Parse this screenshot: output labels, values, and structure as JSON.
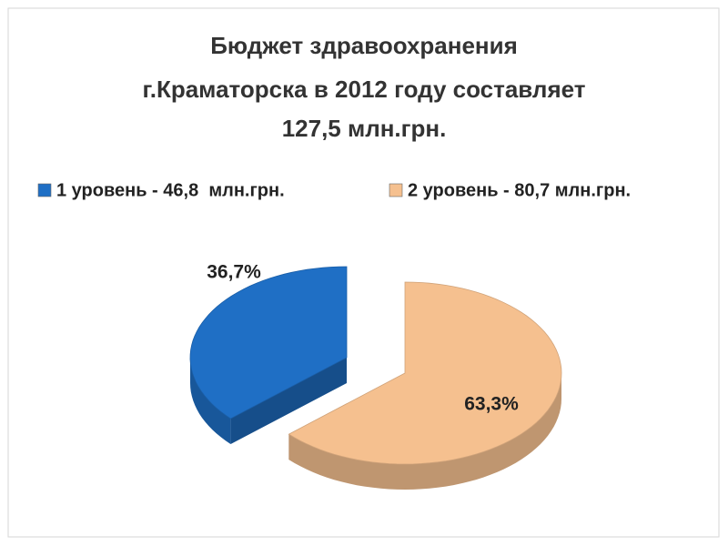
{
  "chart_data": {
    "type": "pie",
    "title": [
      "Бюджет здравоохранения",
      "г.Краматорска в 2012 году составляет",
      "127,5 млн.грн."
    ],
    "series": [
      {
        "name": "1 уровень - 46,8  млн.грн.",
        "color": "#1f6fc5"
      },
      {
        "name": "2 уровень - 80,7 млн.грн.",
        "color": "#f5c08f"
      }
    ],
    "values": [
      36.7,
      63.3
    ],
    "value_labels": [
      "36,7%",
      "63,3%"
    ],
    "legend": "top"
  }
}
